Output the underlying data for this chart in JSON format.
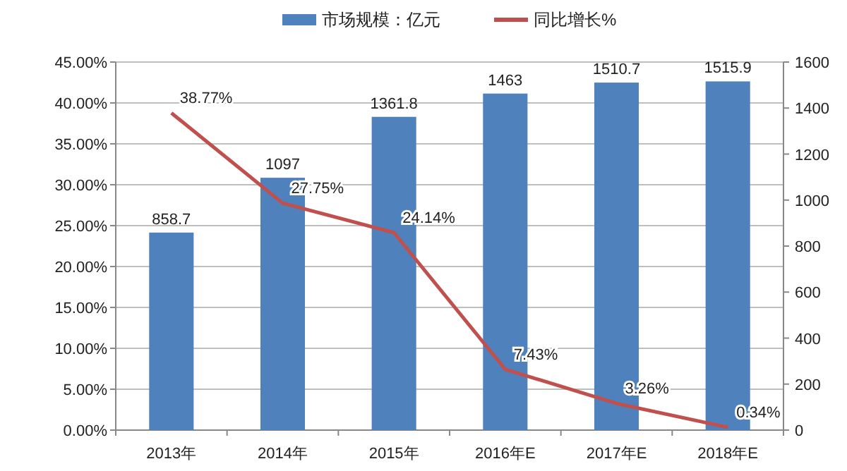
{
  "chart_data": {
    "type": "bar",
    "categories": [
      "2013年",
      "2014年",
      "2015年",
      "2016年E",
      "2017年E",
      "2018年E"
    ],
    "series": [
      {
        "name": "市场规模：亿元",
        "axis": "y2",
        "color": "#4f81bd",
        "values": [
          858.7,
          1097,
          1361.8,
          1463,
          1510.7,
          1515.9
        ],
        "value_labels": [
          "858.7",
          "1097",
          "1361.8",
          "1463",
          "1510.7",
          "1515.9"
        ]
      },
      {
        "name": "同比增长%",
        "type": "line",
        "color": "#c0504d",
        "values": [
          38.77,
          27.75,
          24.14,
          7.43,
          3.26,
          0.34
        ],
        "value_labels": [
          "38.77%",
          "27.75%",
          "24.14%",
          "7.43%",
          "3.26%",
          "0.34%"
        ]
      }
    ],
    "ylim": [
      0,
      45
    ],
    "yticks": [
      {
        "value": 0,
        "label": "0.00%"
      },
      {
        "value": 5,
        "label": "5.00%"
      },
      {
        "value": 10,
        "label": "10.00%"
      },
      {
        "value": 15,
        "label": "15.00%"
      },
      {
        "value": 20,
        "label": "20.00%"
      },
      {
        "value": 25,
        "label": "25.00%"
      },
      {
        "value": 30,
        "label": "30.00%"
      },
      {
        "value": 35,
        "label": "35.00%"
      },
      {
        "value": 40,
        "label": "40.00%"
      },
      {
        "value": 45,
        "label": "45.00%"
      }
    ],
    "y2lim": [
      0,
      1600
    ],
    "y2ticks": [
      0,
      200,
      400,
      600,
      800,
      1000,
      1200,
      1400,
      1600
    ],
    "grid": "y",
    "legend": "top",
    "marker": "none",
    "line_style": "solid"
  }
}
